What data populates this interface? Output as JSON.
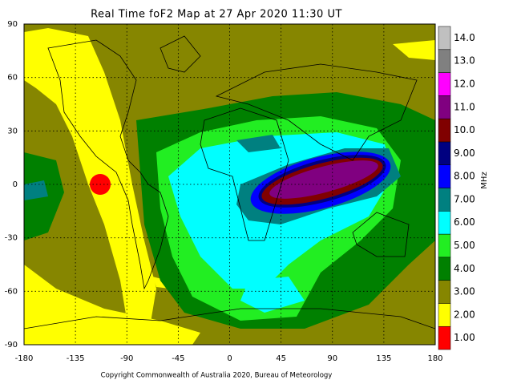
{
  "title": "Real Time foF2 Map at 27 Apr 2020 11:30 UT",
  "map": {
    "xlim": [
      -180,
      180
    ],
    "ylim": [
      -90,
      90
    ],
    "xticks": [
      -180,
      -135,
      -90,
      -45,
      0,
      45,
      90,
      135,
      180
    ],
    "yticks": [
      90,
      60,
      30,
      0,
      -30,
      -60,
      -90
    ]
  },
  "colorbar": {
    "label": "MHz",
    "levels": [
      {
        "value": 1,
        "label": "1.00",
        "color": "#ff0000"
      },
      {
        "value": 2,
        "label": "2.00",
        "color": "#ffff00"
      },
      {
        "value": 3,
        "label": "3.00",
        "color": "#868600"
      },
      {
        "value": 4,
        "label": "4.00",
        "color": "#008000"
      },
      {
        "value": 5,
        "label": "5.00",
        "color": "#22ee22"
      },
      {
        "value": 6,
        "label": "6.00",
        "color": "#00ffff"
      },
      {
        "value": 7,
        "label": "7.00",
        "color": "#008080"
      },
      {
        "value": 8,
        "label": "8.00",
        "color": "#0000ff"
      },
      {
        "value": 9,
        "label": "9.00",
        "color": "#000080"
      },
      {
        "value": 10,
        "label": "10.0",
        "color": "#800000"
      },
      {
        "value": 11,
        "label": "11.0",
        "color": "#800080"
      },
      {
        "value": 12,
        "label": "12.0",
        "color": "#ff00ff"
      },
      {
        "value": 13,
        "label": "13.0",
        "color": "#808080"
      },
      {
        "value": 14,
        "label": "14.0",
        "color": "#c0c0c0"
      }
    ]
  },
  "copyright": "Copyright Commonwealth of Australia 2020, Bureau of Meteorology"
}
